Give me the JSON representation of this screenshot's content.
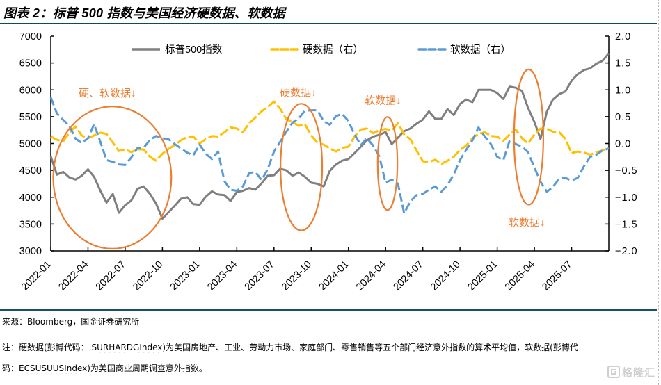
{
  "title": "图表 2：标普 500 指数与美国经济硬数据、软数据",
  "chart_data": {
    "type": "line",
    "title": "图表 2：标普 500 指数与美国经济硬数据、软数据",
    "xlabel": "",
    "ylabel_left": "",
    "ylabel_right": "",
    "grid": false,
    "legend_position": "top",
    "x_range": [
      "2022-01-01",
      "2025-10-01"
    ],
    "x_tick_labels": [
      "2022-01",
      "2022-04",
      "2022-07",
      "2022-10",
      "2023-01",
      "2023-04",
      "2023-07",
      "2023-10",
      "2024-01",
      "2024-04",
      "2024-07",
      "2024-10",
      "2025-01",
      "2025-04",
      "2025-07"
    ],
    "y_left": {
      "min": 3000,
      "max": 7000,
      "step": 500,
      "tick_labels": [
        "3000",
        "3500",
        "4000",
        "4500",
        "5000",
        "5500",
        "6000",
        "6500",
        "7000"
      ]
    },
    "y_right": {
      "min": -2.0,
      "max": 2.0,
      "step": 0.5,
      "tick_labels": [
        "-2.0",
        "-1.5",
        "-1.0",
        "-0.5",
        "0.0",
        "0.5",
        "1.0",
        "1.5",
        "2.0"
      ]
    },
    "x": [
      "2022-01-01",
      "2022-01-16",
      "2022-02-01",
      "2022-02-16",
      "2022-03-01",
      "2022-03-16",
      "2022-04-01",
      "2022-04-16",
      "2022-05-01",
      "2022-05-16",
      "2022-06-01",
      "2022-06-16",
      "2022-07-01",
      "2022-07-16",
      "2022-08-01",
      "2022-08-16",
      "2022-09-01",
      "2022-09-16",
      "2022-10-01",
      "2022-10-16",
      "2022-11-01",
      "2022-11-16",
      "2022-12-01",
      "2022-12-16",
      "2023-01-01",
      "2023-01-16",
      "2023-02-01",
      "2023-02-16",
      "2023-03-01",
      "2023-03-16",
      "2023-04-01",
      "2023-04-16",
      "2023-05-01",
      "2023-05-16",
      "2023-06-01",
      "2023-06-16",
      "2023-07-01",
      "2023-07-16",
      "2023-08-01",
      "2023-08-16",
      "2023-09-01",
      "2023-09-16",
      "2023-10-01",
      "2023-10-16",
      "2023-11-01",
      "2023-11-16",
      "2023-12-01",
      "2023-12-16",
      "2024-01-01",
      "2024-01-16",
      "2024-02-01",
      "2024-02-16",
      "2024-03-01",
      "2024-03-16",
      "2024-04-01",
      "2024-04-16",
      "2024-05-01",
      "2024-05-16",
      "2024-06-01",
      "2024-06-16",
      "2024-07-01",
      "2024-07-16",
      "2024-08-01",
      "2024-08-16",
      "2024-09-01",
      "2024-09-16",
      "2024-10-01",
      "2024-10-16",
      "2024-11-01",
      "2024-11-16",
      "2024-12-01",
      "2024-12-16",
      "2025-01-01",
      "2025-01-16",
      "2025-02-01",
      "2025-02-16",
      "2025-03-01",
      "2025-03-16",
      "2025-04-01",
      "2025-04-16",
      "2025-05-01",
      "2025-05-16",
      "2025-06-01",
      "2025-06-16",
      "2025-07-01",
      "2025-07-16",
      "2025-08-01",
      "2025-08-16",
      "2025-09-01",
      "2025-09-16",
      "2025-10-01"
    ],
    "series": [
      {
        "name": "标普500指数",
        "key": "sp500",
        "axis": "left",
        "style": "solid",
        "color": "#7f7f7f",
        "values": [
          4760,
          4420,
          4470,
          4370,
          4330,
          4400,
          4520,
          4380,
          4120,
          3900,
          4060,
          3710,
          3850,
          3940,
          4160,
          4200,
          4060,
          3880,
          3600,
          3720,
          3840,
          3970,
          4000,
          3870,
          3860,
          4010,
          4110,
          4050,
          4040,
          3930,
          4095,
          4120,
          4170,
          4140,
          4260,
          4400,
          4410,
          4530,
          4500,
          4400,
          4460,
          4380,
          4270,
          4250,
          4200,
          4490,
          4610,
          4680,
          4710,
          4820,
          4940,
          5060,
          5128,
          5160,
          5214,
          4990,
          5110,
          5230,
          5280,
          5370,
          5445,
          5600,
          5460,
          5460,
          5640,
          5530,
          5735,
          5820,
          5770,
          6000,
          6000,
          6000,
          5940,
          5830,
          6060,
          6040,
          5980,
          5660,
          5400,
          5085,
          5590,
          5820,
          5920,
          5970,
          6170,
          6292,
          6370,
          6400,
          6487,
          6540,
          6680
        ]
      },
      {
        "name": "硬数据（右）",
        "key": "hard-data",
        "axis": "right",
        "style": "dashed",
        "color": "#ffc000",
        "values": [
          0.13,
          0.07,
          0.04,
          0.2,
          0.32,
          0.15,
          0.1,
          0.15,
          0.2,
          0.18,
          0.02,
          -0.14,
          -0.11,
          -0.16,
          -0.11,
          -0.11,
          -0.25,
          -0.32,
          -0.19,
          -0.1,
          -0.03,
          0.06,
          0.12,
          0.13,
          0.0,
          0.08,
          0.14,
          0.13,
          0.21,
          0.3,
          0.28,
          0.21,
          0.38,
          0.48,
          0.6,
          0.68,
          0.78,
          0.65,
          0.45,
          0.4,
          0.33,
          0.36,
          0.15,
          0.02,
          -0.02,
          -0.09,
          -0.15,
          -0.08,
          -0.06,
          0.13,
          0.26,
          0.28,
          0.19,
          0.25,
          0.27,
          0.24,
          0.38,
          0.17,
          0.08,
          -0.13,
          -0.33,
          -0.35,
          -0.3,
          -0.38,
          -0.32,
          -0.25,
          -0.12,
          -0.04,
          0.1,
          0.18,
          0.21,
          0.14,
          0.13,
          0.05,
          0.17,
          0.26,
          0.1,
          0.0,
          0.17,
          0.28,
          0.28,
          0.22,
          0.21,
          0.09,
          -0.18,
          -0.15,
          -0.17,
          -0.21,
          -0.16,
          -0.13,
          -0.09
        ]
      },
      {
        "name": "软数据（右）",
        "key": "soft-data",
        "axis": "right",
        "style": "dashed",
        "color": "#5b9bd5",
        "values": [
          0.86,
          0.56,
          0.44,
          0.33,
          0.09,
          0.01,
          0.1,
          0.36,
          0.03,
          -0.31,
          -0.34,
          -0.39,
          -0.4,
          -0.26,
          -0.08,
          -0.08,
          0.07,
          0.14,
          0.1,
          0.08,
          -0.01,
          -0.09,
          -0.17,
          -0.22,
          -0.02,
          -0.19,
          -0.29,
          -0.15,
          -0.7,
          -0.86,
          -0.88,
          -0.8,
          -0.55,
          -0.53,
          -0.68,
          -0.48,
          -0.15,
          0.03,
          0.22,
          0.39,
          0.47,
          0.61,
          0.62,
          0.62,
          0.42,
          0.35,
          0.51,
          0.55,
          0.42,
          0.17,
          -0.03,
          0.1,
          -0.04,
          -0.24,
          -0.73,
          -0.67,
          -0.75,
          -1.3,
          -1.08,
          -0.96,
          -0.94,
          -0.86,
          -0.8,
          -0.9,
          -0.77,
          -0.58,
          -0.31,
          -0.12,
          0.06,
          0.3,
          0.13,
          -0.01,
          -0.25,
          -0.31,
          0.05,
          -0.01,
          -0.06,
          -0.16,
          -0.45,
          -0.71,
          -0.9,
          -0.81,
          -0.65,
          -0.64,
          -0.69,
          -0.64,
          -0.42,
          -0.25,
          -0.21,
          -0.13,
          -0.09
        ]
      }
    ],
    "annotations": [
      {
        "label": "硬、软数据↓",
        "color": "#ed7d31",
        "highlight": {
          "from": "2022-01-07",
          "to": "2022-10-23",
          "low": 3040,
          "high": 5690
        },
        "label_at": {
          "date": "2022-05-18",
          "value": 5940
        }
      },
      {
        "label": "硬数据↓",
        "color": "#ed7d31",
        "highlight": {
          "from": "2023-07-17",
          "to": "2023-10-28",
          "low": 3380,
          "high": 5740
        },
        "label_at": {
          "date": "2023-08-30",
          "value": 5950
        }
      },
      {
        "label": "软数据↓",
        "color": "#ed7d31",
        "highlight": {
          "from": "2024-03-12",
          "to": "2024-04-30",
          "low": 3760,
          "high": 5495
        },
        "label_at": {
          "date": "2024-03-25",
          "value": 5800
        }
      },
      {
        "label": "软数据↓",
        "color": "#ed7d31",
        "highlight": {
          "from": "2025-02-12",
          "to": "2025-04-23",
          "low": 3860,
          "high": 6380
        },
        "label_at": {
          "date": "2025-03-13",
          "value": 3530
        }
      }
    ]
  },
  "footer": {
    "source": {
      "prefix": "来源：",
      "link": "Bloomberg",
      "suffix": "，国金证券研究所"
    },
    "note_line1": {
      "prefix": "注：硬数据(彭博代码：.",
      "code": "SURHARDGIndex",
      "suffix": ")为美国房地产、工业、劳动力市场、家庭部门、零售销售等五个部门经济意外指数的算术平均值，软数据(彭博代"
    },
    "note_line2": {
      "prefix": "码：",
      "code": "ECSUSUUSIndex",
      "suffix": ")为美国商业周期调查意外指数。"
    }
  },
  "watermark": {
    "text": "格隆汇",
    "icon": "gelonghui-logo-icon"
  }
}
